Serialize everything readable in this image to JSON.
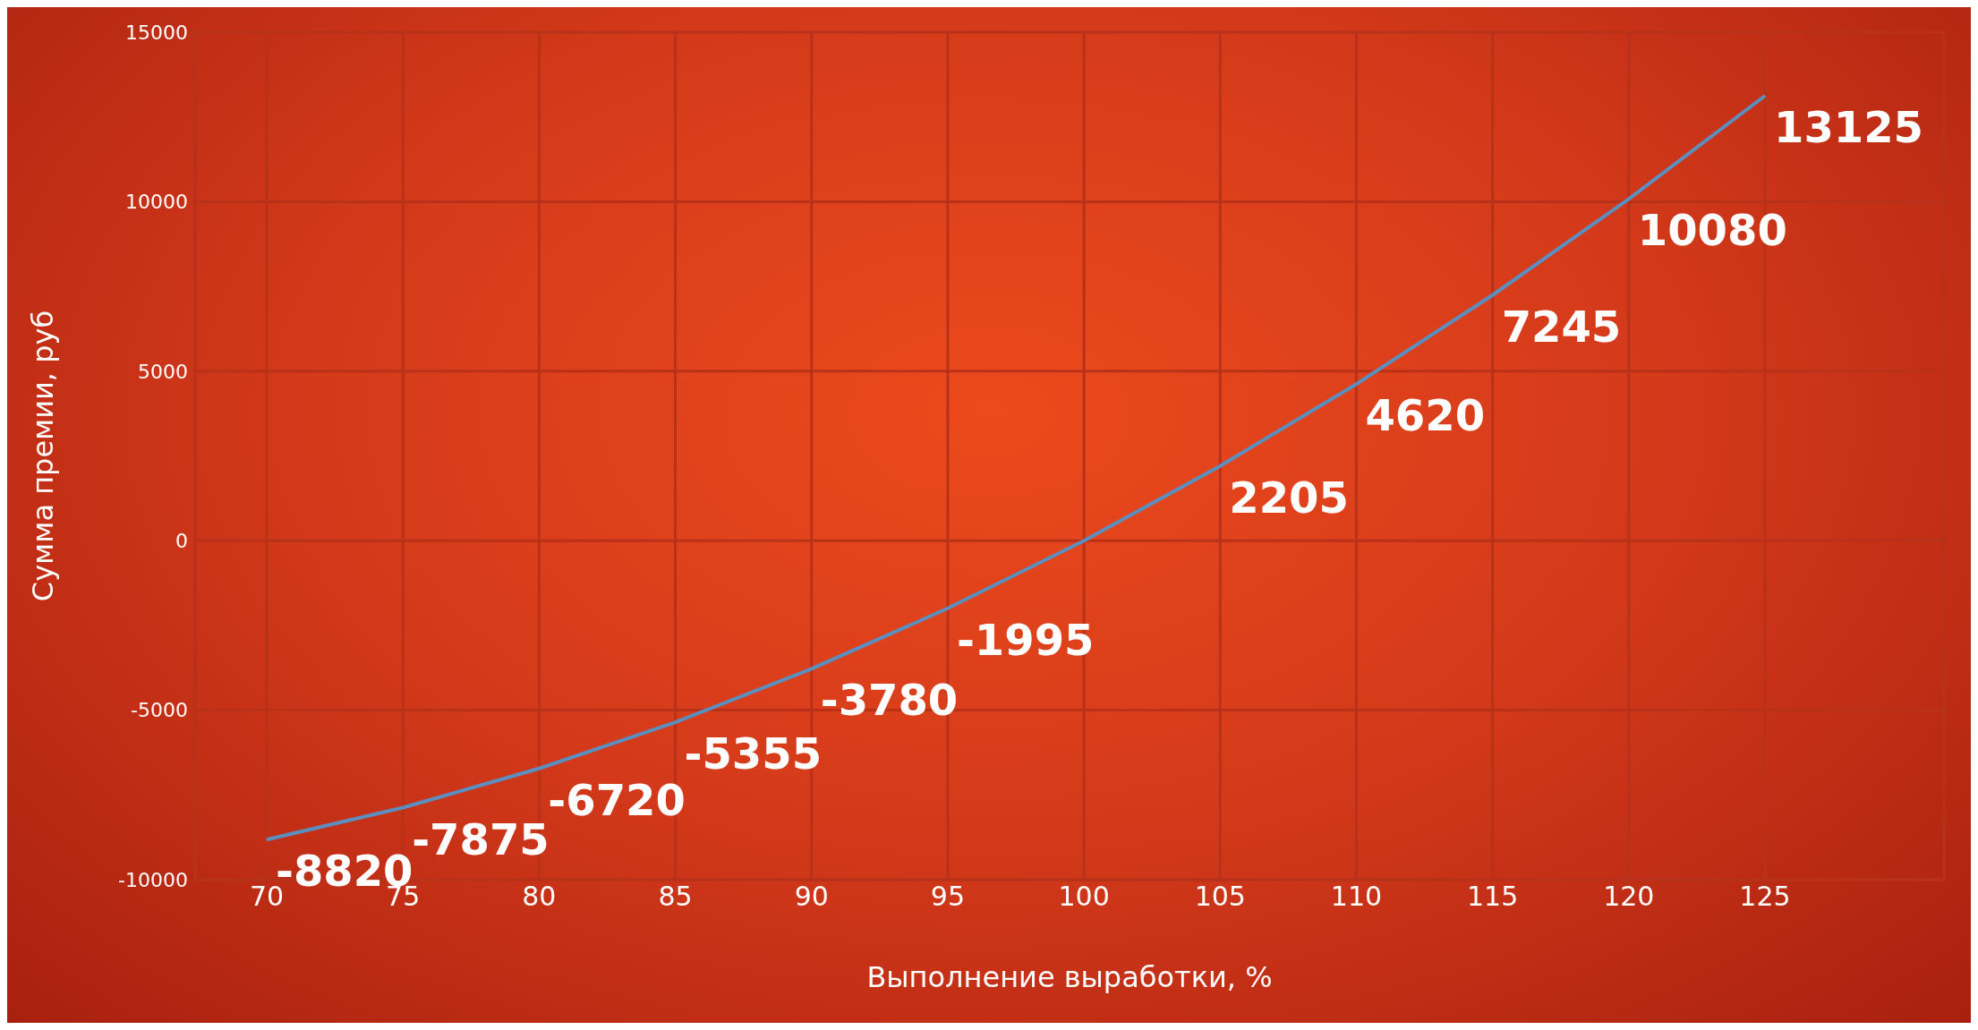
{
  "chart_data": {
    "type": "line",
    "xlabel": "Выполнение выработки, %",
    "ylabel": "Сумма премии, руб",
    "categories": [
      "70",
      "75",
      "80",
      "85",
      "90",
      "95",
      "100",
      "105",
      "110",
      "115",
      "120",
      "125"
    ],
    "series": [
      {
        "color": "#5b8fc0",
        "values": [
          -8820,
          -7875,
          -6720,
          -5355,
          -3780,
          -1995,
          0,
          2205,
          4620,
          7245,
          10080,
          13125
        ],
        "value_labels": [
          "-8820",
          "-7875",
          "-6720",
          "-5355",
          "-3780",
          "-1995",
          null,
          "2205",
          "4620",
          "7245",
          "10080",
          "13125"
        ]
      }
    ],
    "ylim": [
      -10000,
      15000
    ],
    "yticks": [
      -10000,
      -5000,
      0,
      5000,
      10000,
      15000
    ],
    "grid": true,
    "legend": false,
    "marker": "none",
    "line_style": "solid"
  }
}
